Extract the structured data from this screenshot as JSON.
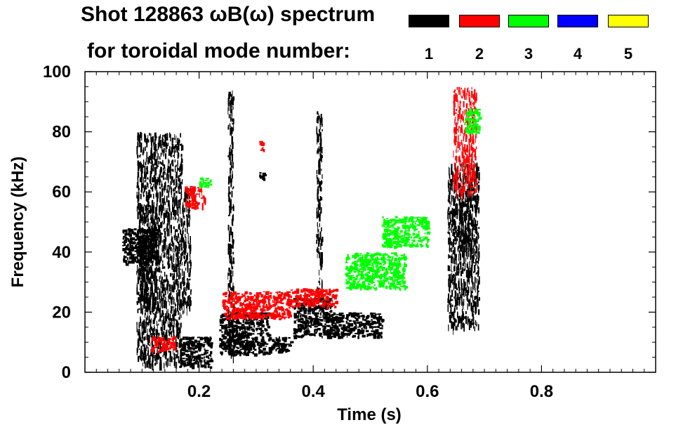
{
  "chart_data": {
    "type": "heatmap",
    "title_line1": "Shot 128863 ωB(ω) spectrum",
    "title_line2": "for toroidal mode number:",
    "xlabel": "Time (s)",
    "ylabel": "Frequency (kHz)",
    "xlim": [
      0.0,
      1.0
    ],
    "ylim": [
      0,
      100
    ],
    "x_ticks": [
      0.2,
      0.4,
      0.6,
      0.8
    ],
    "x_tick_labels": [
      "0.2",
      "0.4",
      "0.6",
      "0.8"
    ],
    "y_ticks": [
      0,
      20,
      40,
      60,
      80,
      100
    ],
    "y_tick_labels": [
      "0",
      "20",
      "40",
      "60",
      "80",
      "100"
    ],
    "legend": [
      {
        "label": "1",
        "color": "#000000"
      },
      {
        "label": "2",
        "color": "#ff0000"
      },
      {
        "label": "3",
        "color": "#00ff00"
      },
      {
        "label": "4",
        "color": "#0000ff"
      },
      {
        "label": "5",
        "color": "#ffff00"
      }
    ],
    "regions": [
      {
        "mode": 1,
        "t": [
          0.065,
          0.125
        ],
        "f": [
          36,
          48
        ]
      },
      {
        "mode": 1,
        "t": [
          0.095,
          0.125
        ],
        "f": [
          22,
          56
        ]
      },
      {
        "mode": 1,
        "t": [
          0.09,
          0.17
        ],
        "f": [
          3,
          80
        ]
      },
      {
        "mode": 1,
        "t": [
          0.165,
          0.22
        ],
        "f": [
          2,
          12
        ]
      },
      {
        "mode": 1,
        "t": [
          0.17,
          0.185
        ],
        "f": [
          20,
          62
        ]
      },
      {
        "mode": 1,
        "t": [
          0.235,
          0.32
        ],
        "f": [
          6,
          20
        ]
      },
      {
        "mode": 1,
        "t": [
          0.32,
          0.36
        ],
        "f": [
          7,
          12
        ]
      },
      {
        "mode": 1,
        "t": [
          0.365,
          0.43
        ],
        "f": [
          12,
          25
        ]
      },
      {
        "mode": 1,
        "t": [
          0.43,
          0.52
        ],
        "f": [
          12,
          20
        ]
      },
      {
        "mode": 1,
        "t": [
          0.25,
          0.26
        ],
        "f": [
          5,
          95
        ]
      },
      {
        "mode": 1,
        "t": [
          0.305,
          0.315
        ],
        "f": [
          64,
          67
        ]
      },
      {
        "mode": 1,
        "t": [
          0.405,
          0.415
        ],
        "f": [
          25,
          87
        ]
      },
      {
        "mode": 1,
        "t": [
          0.635,
          0.69
        ],
        "f": [
          15,
          70
        ]
      },
      {
        "mode": 1,
        "t": [
          0.655,
          0.685
        ],
        "f": [
          40,
          60
        ]
      },
      {
        "mode": 2,
        "t": [
          0.2,
          0.21
        ],
        "f": [
          56,
          62
        ]
      },
      {
        "mode": 2,
        "t": [
          0.175,
          0.2
        ],
        "f": [
          55,
          62
        ]
      },
      {
        "mode": 2,
        "t": [
          0.115,
          0.155
        ],
        "f": [
          7,
          12
        ]
      },
      {
        "mode": 2,
        "t": [
          0.24,
          0.36
        ],
        "f": [
          18,
          27
        ]
      },
      {
        "mode": 2,
        "t": [
          0.305,
          0.315
        ],
        "f": [
          74,
          77
        ]
      },
      {
        "mode": 2,
        "t": [
          0.36,
          0.44
        ],
        "f": [
          22,
          28
        ]
      },
      {
        "mode": 2,
        "t": [
          0.645,
          0.685
        ],
        "f": [
          60,
          95
        ]
      },
      {
        "mode": 3,
        "t": [
          0.2,
          0.22
        ],
        "f": [
          62,
          65
        ]
      },
      {
        "mode": 3,
        "t": [
          0.455,
          0.56
        ],
        "f": [
          28,
          40
        ]
      },
      {
        "mode": 3,
        "t": [
          0.52,
          0.6
        ],
        "f": [
          42,
          52
        ]
      },
      {
        "mode": 3,
        "t": [
          0.665,
          0.69
        ],
        "f": [
          80,
          88
        ]
      }
    ]
  }
}
